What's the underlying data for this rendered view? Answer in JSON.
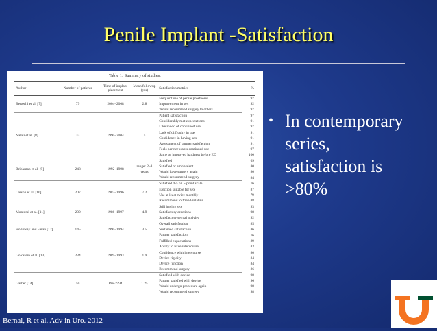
{
  "slide": {
    "title": "Penile Implant -Satisfaction",
    "bullet": "In contemporary\nseries,\nsatisfaction is\n>80%",
    "citation": "Bernal, R et al.  Adv in Uro. 2012"
  },
  "table": {
    "caption": "Table 1: Summary of studies.",
    "headers": [
      "Author",
      "Number of patients",
      "Time of implant placement",
      "Mean followup (yrs)",
      "Satisfaction metrics",
      "%"
    ],
    "groups": [
      {
        "author": "Bettochi et al. [7]",
        "patients": "79",
        "time": "2004–2008",
        "followup": "2.8",
        "metrics": [
          [
            "Frequent use of penile prosthesis",
            "97"
          ],
          [
            "Improvement in sex",
            "92"
          ],
          [
            "Would recommend surgery to others",
            "97"
          ]
        ]
      },
      {
        "author": "Natali et al. [8]",
        "patients": "33",
        "time": "1990–2004",
        "followup": "5",
        "metrics": [
          [
            "Patient satisfaction",
            "97"
          ],
          [
            "Considerably met expectations",
            "91"
          ],
          [
            "Likelihood of continued use",
            "97"
          ],
          [
            "Lack of difficulty in use",
            "91"
          ],
          [
            "Confidence in having sex",
            "91"
          ],
          [
            "Assessment of partner satisfaction",
            "91"
          ],
          [
            "Feels partner wants continued use",
            "97"
          ],
          [
            "Same or improved hardness before ED",
            "100"
          ]
        ]
      },
      {
        "author": "Brinkman et al. [9]",
        "patients": "248",
        "time": "1992–1998",
        "followup": "range: 2–8 years",
        "metrics": [
          [
            "Satisfied",
            "69"
          ],
          [
            "Satisfied or ambivalent",
            "80"
          ],
          [
            "Would have surgery again",
            "80"
          ],
          [
            "Would recommend surgery",
            "84"
          ]
        ]
      },
      {
        "author": "Carson et al. [10]",
        "patients": "207",
        "time": "1987–1996",
        "followup": "7.2",
        "metrics": [
          [
            "Satisfied 4-5 on 5-point scale",
            "76"
          ],
          [
            "Erection suitable for sex",
            "87"
          ],
          [
            "Use at least twice monthly",
            "79"
          ],
          [
            "Recommend to friend/relative",
            "88"
          ]
        ]
      },
      {
        "author": "Montorsi et al. [11]",
        "patients": "200",
        "time": "1986–1997",
        "followup": "4.9",
        "metrics": [
          [
            "Still having sex",
            "93"
          ],
          [
            "Satisfactory erections",
            "98"
          ],
          [
            "Satisfactory sexual activity",
            "92"
          ]
        ]
      },
      {
        "author": "Holloway and Farah [12]",
        "patients": "145",
        "time": "1990–1994",
        "followup": "3.5",
        "metrics": [
          [
            "Overall satisfaction",
            "85"
          ],
          [
            "Sustained satisfaction",
            "86"
          ],
          [
            "Partner satisfaction",
            "76"
          ]
        ]
      },
      {
        "author": "Goldstein et al. [13]",
        "patients": "234",
        "time": "1989–1993",
        "followup": "1.9",
        "metrics": [
          [
            "Fulfilled expectations",
            "89"
          ],
          [
            "Ability to have intercourse",
            "83"
          ],
          [
            "Confidence with intercourse",
            "80"
          ],
          [
            "Device rigidity",
            "84"
          ],
          [
            "Device function",
            "84"
          ],
          [
            "Recommend surgery",
            "86"
          ]
        ]
      },
      {
        "author": "Garber [14]",
        "patients": "50",
        "time": "Pre-1994",
        "followup": "1.25",
        "metrics": [
          [
            "Satisfied with device",
            "98"
          ],
          [
            "Partner satisfied with device",
            "96"
          ],
          [
            "Would undergo procedure again",
            "98"
          ],
          [
            "Would recommend surgery",
            "98"
          ]
        ]
      }
    ]
  },
  "logo": {
    "letter": "U",
    "orange": "#f47321",
    "green": "#005030"
  }
}
